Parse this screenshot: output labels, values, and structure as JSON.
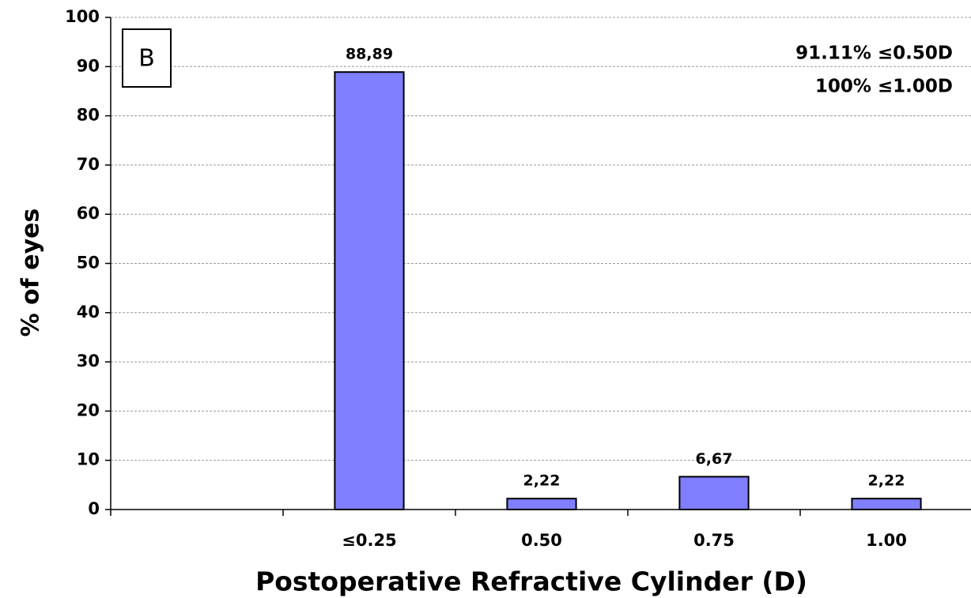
{
  "chart_data": {
    "type": "bar",
    "x_label": "Postoperative Refractive Cylinder (D)",
    "y_label": "% of eyes",
    "panel_label": "B",
    "annotations": [
      "91.11% ≤0.50D",
      "100% ≤1.00D"
    ],
    "categories": [
      null,
      "≤0.25",
      "0.50",
      "0.75",
      "1.00"
    ],
    "values": [
      null,
      88.89,
      2.22,
      6.67,
      2.22
    ],
    "value_labels": [
      null,
      "88,89",
      "2,22",
      "6,67",
      "2,22"
    ],
    "color": "#7f7fff",
    "ylim": [
      0,
      100
    ],
    "yticks": [
      0,
      10,
      20,
      30,
      40,
      50,
      60,
      70,
      80,
      90,
      100
    ],
    "grid": true
  }
}
